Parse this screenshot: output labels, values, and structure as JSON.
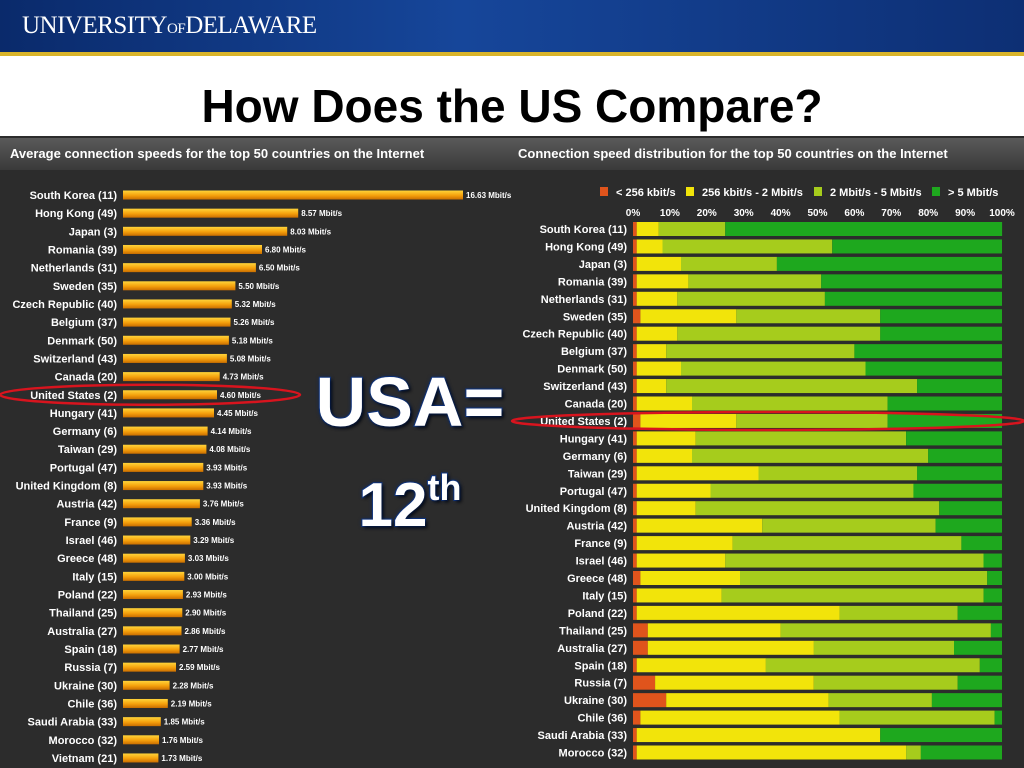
{
  "header": {
    "logo_prefix": "UNIVERSITY",
    "logo_of": "OF",
    "logo_suffix": "DELAWARE"
  },
  "slide_title": "How Does the US Compare?",
  "annotation": {
    "line1": "USA=",
    "line2_number": "12",
    "line2_suffix": "th"
  },
  "colors": {
    "banner": "#16469a",
    "bar": "#f5a00c",
    "highlight": "#d8141e",
    "seg_colors": [
      "#e0541c",
      "#f2e40a",
      "#a6cc1c",
      "#1ea81e"
    ]
  },
  "chart_data": [
    {
      "type": "bar",
      "orientation": "horizontal",
      "title": "Average connection speeds for the top 50 countries on the Internet",
      "unit": "Mbit/s",
      "categories": [
        "South Korea (11)",
        "Hong Kong (49)",
        "Japan (3)",
        "Romania (39)",
        "Netherlands (31)",
        "Sweden (35)",
        "Czech Republic (40)",
        "Belgium (37)",
        "Denmark (50)",
        "Switzerland (43)",
        "Canada (20)",
        "United States (2)",
        "Hungary (41)",
        "Germany (6)",
        "Taiwan (29)",
        "Portugal (47)",
        "United Kingdom (8)",
        "Austria (42)",
        "France (9)",
        "Israel (46)",
        "Greece (48)",
        "Italy (15)",
        "Poland (22)",
        "Thailand (25)",
        "Australia (27)",
        "Spain (18)",
        "Russia (7)",
        "Ukraine (30)",
        "Chile (36)",
        "Saudi Arabia (33)",
        "Morocco (32)",
        "Vietnam (21)"
      ],
      "values": [
        16.63,
        8.57,
        8.03,
        6.8,
        6.5,
        5.5,
        5.32,
        5.26,
        5.18,
        5.08,
        4.73,
        4.6,
        4.45,
        4.14,
        4.08,
        3.93,
        3.93,
        3.76,
        3.36,
        3.29,
        3.03,
        3.0,
        2.93,
        2.9,
        2.86,
        2.77,
        2.59,
        2.28,
        2.19,
        1.85,
        1.76,
        1.73
      ],
      "labels": [
        "16.63 Mbit/s",
        "8.57 Mbit/s",
        "8.03 Mbit/s",
        "6.80 Mbit/s",
        "6.50 Mbit/s",
        "5.50 Mbit/s",
        "5.32 Mbit/s",
        "5.26 Mbit/s",
        "5.18 Mbit/s",
        "5.08 Mbit/s",
        "4.73 Mbit/s",
        "4.60 Mbit/s",
        "4.45 Mbit/s",
        "4.14 Mbit/s",
        "4.08 Mbit/s",
        "3.93 Mbit/s",
        "3.93 Mbit/s",
        "3.76 Mbit/s",
        "3.36 Mbit/s",
        "3.29 Mbit/s",
        "3.03 Mbit/s",
        "3.00 Mbit/s",
        "2.93 Mbit/s",
        "2.90 Mbit/s",
        "2.86 Mbit/s",
        "2.77 Mbit/s",
        "2.59 Mbit/s",
        "2.28 Mbit/s",
        "2.19 Mbit/s",
        "1.85 Mbit/s",
        "1.76 Mbit/s",
        "1.73 Mbit/s"
      ],
      "xlim": [
        0,
        16.63
      ],
      "highlight": "United States (2)"
    },
    {
      "type": "bar",
      "stacked": true,
      "orientation": "horizontal",
      "title": "Connection speed distribution for the top 50 countries on the Internet",
      "legend_position": "top",
      "series_names": [
        "< 256 kbit/s",
        "256 kbit/s - 2 Mbit/s",
        "2 Mbit/s - 5 Mbit/s",
        "> 5 Mbit/s"
      ],
      "xticks": [
        "0%",
        "10%",
        "20%",
        "30%",
        "40%",
        "50%",
        "60%",
        "70%",
        "80%",
        "90%",
        "100%"
      ],
      "categories": [
        "South Korea (11)",
        "Hong Kong (49)",
        "Japan (3)",
        "Romania (39)",
        "Netherlands (31)",
        "Sweden (35)",
        "Czech Republic (40)",
        "Belgium (37)",
        "Denmark (50)",
        "Switzerland (43)",
        "Canada (20)",
        "United States (2)",
        "Hungary (41)",
        "Germany (6)",
        "Taiwan (29)",
        "Portugal (47)",
        "United Kingdom (8)",
        "Austria (42)",
        "France (9)",
        "Israel (46)",
        "Greece (48)",
        "Italy (15)",
        "Poland (22)",
        "Thailand (25)",
        "Australia (27)",
        "Spain (18)",
        "Russia (7)",
        "Ukraine (30)",
        "Chile (36)",
        "Saudi Arabia (33)",
        "Morocco (32)"
      ],
      "segments": [
        [
          1,
          6,
          18,
          75
        ],
        [
          1,
          7,
          46,
          46
        ],
        [
          1,
          12,
          26,
          61
        ],
        [
          1,
          14,
          36,
          49
        ],
        [
          1,
          11,
          40,
          48
        ],
        [
          2,
          26,
          39,
          33
        ],
        [
          1,
          11,
          55,
          33
        ],
        [
          1,
          8,
          51,
          40
        ],
        [
          1,
          12,
          50,
          37
        ],
        [
          1,
          8,
          68,
          23
        ],
        [
          1,
          15,
          53,
          31
        ],
        [
          2,
          26,
          41,
          31
        ],
        [
          1,
          16,
          57,
          26
        ],
        [
          1,
          15,
          64,
          20
        ],
        [
          1,
          33,
          43,
          23
        ],
        [
          1,
          20,
          55,
          24
        ],
        [
          1,
          16,
          66,
          17
        ],
        [
          1,
          34,
          47,
          18
        ],
        [
          1,
          26,
          62,
          11
        ],
        [
          1,
          24,
          70,
          5
        ],
        [
          2,
          27,
          67,
          4
        ],
        [
          1,
          23,
          71,
          5
        ],
        [
          1,
          55,
          32,
          12
        ],
        [
          4,
          36,
          57,
          3
        ],
        [
          4,
          45,
          38,
          13
        ],
        [
          1,
          35,
          58,
          6
        ],
        [
          6,
          43,
          39,
          12
        ],
        [
          9,
          44,
          28,
          19
        ],
        [
          2,
          54,
          42,
          2
        ],
        [
          1,
          66,
          0,
          33
        ],
        [
          1,
          73,
          4,
          22
        ]
      ],
      "xlim": [
        0,
        100
      ],
      "highlight": "United States (2)"
    }
  ]
}
